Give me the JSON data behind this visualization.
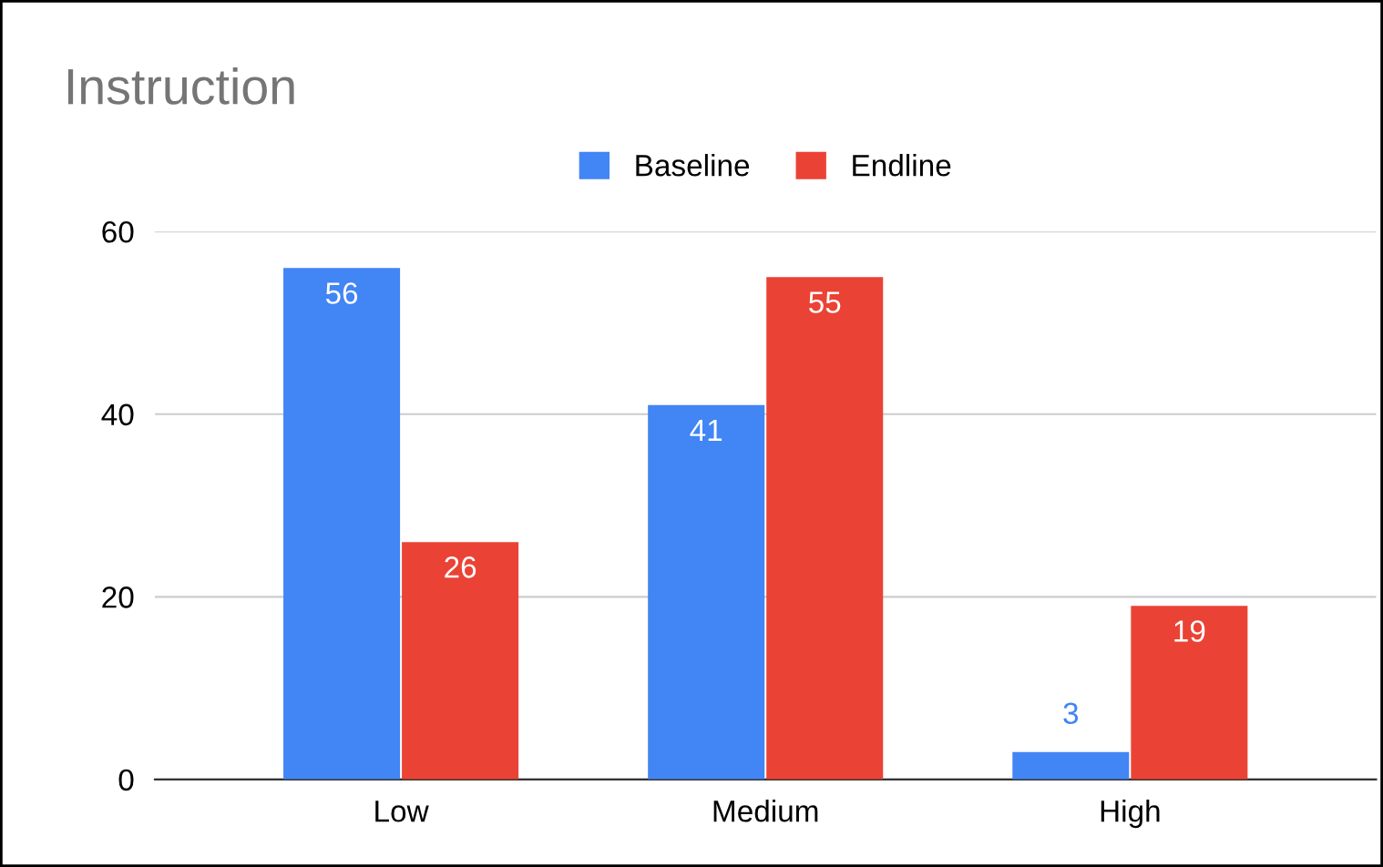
{
  "chart_data": {
    "type": "bar",
    "title": "Instruction",
    "categories": [
      "Low",
      "Medium",
      "High"
    ],
    "series": [
      {
        "name": "Baseline",
        "color": "#4285f4",
        "values": [
          56,
          41,
          3
        ]
      },
      {
        "name": "Endline",
        "color": "#ea4335",
        "values": [
          26,
          55,
          19
        ]
      }
    ],
    "ylim": [
      0,
      60
    ],
    "yticks": [
      0,
      20,
      40,
      60
    ],
    "grid": "y",
    "legend": "top",
    "data_labels": true
  }
}
